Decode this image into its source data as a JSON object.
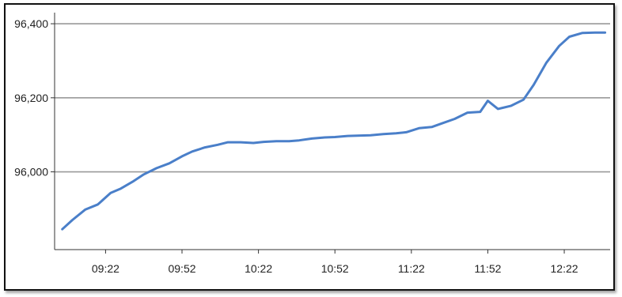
{
  "chart_data": {
    "type": "line",
    "title": "",
    "xlabel": "",
    "ylabel": "",
    "x_ticks": [
      "09:22",
      "09:52",
      "10:22",
      "10:52",
      "11:22",
      "11:52",
      "12:22"
    ],
    "y_ticks": [
      {
        "value": 96000,
        "label": "96,000"
      },
      {
        "value": 96200,
        "label": "96,200"
      },
      {
        "value": 96400,
        "label": "96,400"
      }
    ],
    "ylim": [
      95790,
      96430
    ],
    "xlim": [
      "09:02",
      "12:40"
    ],
    "grid": "horizontal",
    "line_color": "#4a7fc9",
    "series": [
      {
        "x": [
          "09:05",
          "09:09",
          "09:14",
          "09:19",
          "09:24",
          "09:28",
          "09:33",
          "09:37",
          "09:42",
          "09:47",
          "09:52",
          "09:56",
          "10:01",
          "10:06",
          "10:10",
          "10:15",
          "10:20",
          "10:24",
          "10:29",
          "10:34",
          "10:38",
          "10:43",
          "10:48",
          "10:52",
          "10:57",
          "11:02",
          "11:06",
          "11:11",
          "11:16",
          "11:20",
          "11:25",
          "11:30",
          "11:34",
          "11:39",
          "11:44",
          "11:49",
          "11:52",
          "11:56",
          "12:01",
          "12:06",
          "12:10",
          "12:15",
          "12:20",
          "12:24",
          "12:29",
          "12:34",
          "12:38"
        ],
        "y": [
          95845,
          95870,
          95898,
          95912,
          95943,
          95955,
          95975,
          95993,
          96010,
          96023,
          96042,
          96055,
          96066,
          96073,
          96080,
          96080,
          96078,
          96081,
          96083,
          96083,
          96085,
          96090,
          96093,
          96094,
          96097,
          96098,
          96099,
          96102,
          96104,
          96107,
          96118,
          96121,
          96131,
          96143,
          96160,
          96162,
          96192,
          96170,
          96178,
          96195,
          96235,
          96295,
          96340,
          96365,
          96375,
          96376,
          96376
        ]
      }
    ]
  }
}
